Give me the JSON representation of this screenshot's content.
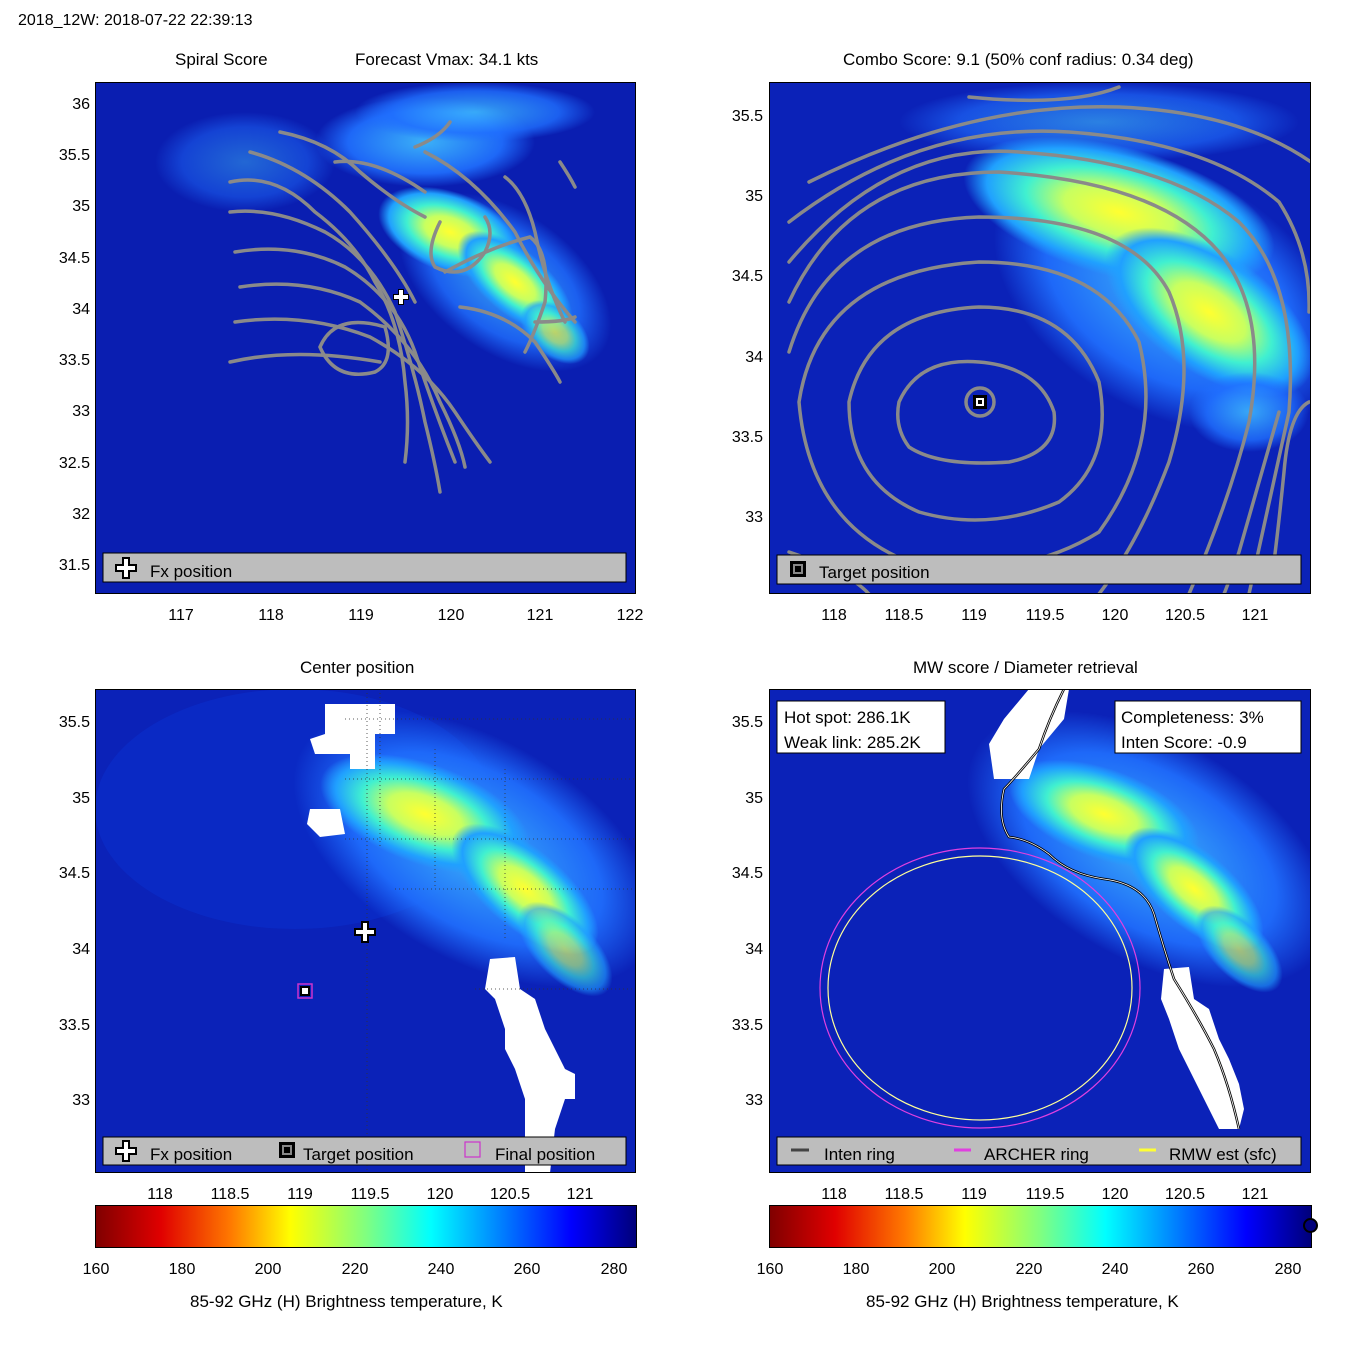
{
  "header": {
    "title": "2018_12W: 2018-07-22 22:39:13"
  },
  "colorbar": {
    "ticks": [
      "160",
      "180",
      "200",
      "220",
      "240",
      "260",
      "280"
    ],
    "label": "85-92 GHz (H) Brightness temperature, K",
    "range": [
      160,
      285
    ]
  },
  "colors": {
    "background": "#0a1fb0",
    "contour": "#8a8a8a",
    "legend_box": "#bdbdbd",
    "final_marker": "#cc33cc",
    "archer_ring": "#e040e0",
    "rmw_ring": "#ffff66"
  },
  "panels": {
    "spiral": {
      "title_left": "Spiral Score",
      "title_right": "Forecast Vmax: 34.1 kts",
      "legend": "Fx position",
      "xticks": [
        "117",
        "118",
        "119",
        "120",
        "121",
        "122"
      ],
      "yticks": [
        "36",
        "35.5",
        "35",
        "34.5",
        "34",
        "33.5",
        "33",
        "32.5",
        "32",
        "31.5"
      ],
      "fx_position": {
        "lon": 119.45,
        "lat": 34.13
      }
    },
    "combo": {
      "title": "Combo Score: 9.1  (50% conf radius: 0.34 deg)",
      "legend": "Target position",
      "xticks": [
        "118",
        "118.5",
        "119",
        "119.5",
        "120",
        "120.5",
        "121"
      ],
      "yticks": [
        "35.5",
        "35",
        "34.5",
        "34",
        "33.5",
        "33"
      ],
      "target_position": {
        "lon": 119.03,
        "lat": 33.73
      }
    },
    "center": {
      "title": "Center position",
      "legend": [
        "Fx position",
        "Target position",
        "Final position"
      ],
      "xticks": [
        "118",
        "118.5",
        "119",
        "119.5",
        "120",
        "120.5",
        "121"
      ],
      "yticks": [
        "35.5",
        "35",
        "34.5",
        "34",
        "33.5",
        "33"
      ],
      "fx_position": {
        "lon": 119.45,
        "lat": 34.13
      },
      "target_position": {
        "lon": 119.03,
        "lat": 33.73
      }
    },
    "mw": {
      "title": "MW score / Diameter retrieval",
      "hot_spot": "Hot spot: 286.1K",
      "weak_link": "Weak link: 285.2K",
      "completeness": "Completeness: 3%",
      "inten_score": "Inten Score: -0.9",
      "legend": [
        "Inten ring",
        "ARCHER ring",
        "RMW est (sfc)"
      ],
      "xticks": [
        "118",
        "118.5",
        "119",
        "119.5",
        "120",
        "120.5",
        "121"
      ],
      "yticks": [
        "35.5",
        "35",
        "34.5",
        "34",
        "33.5",
        "33"
      ]
    }
  },
  "chart_data": [
    {
      "type": "heatmap",
      "title": "Spiral Score",
      "subtitle": "Forecast Vmax: 34.1 kts",
      "xlim": [
        116.05,
        122.05
      ],
      "ylim": [
        31.25,
        36.25
      ],
      "xticks": [
        117,
        118,
        119,
        120,
        121,
        122
      ],
      "yticks": [
        31.5,
        32,
        32.5,
        33,
        33.5,
        34,
        34.5,
        35,
        35.5,
        36
      ],
      "markers": [
        {
          "name": "Fx position",
          "lon": 119.45,
          "lat": 34.13
        }
      ],
      "legend": "bottom"
    },
    {
      "type": "heatmap",
      "title": "Combo Score: 9.1  (50% conf radius: 0.34 deg)",
      "xlim": [
        117.6,
        121.45
      ],
      "ylim": [
        32.5,
        35.75
      ],
      "xticks": [
        118,
        118.5,
        119,
        119.5,
        120,
        120.5,
        121
      ],
      "yticks": [
        33,
        33.5,
        34,
        34.5,
        35,
        35.5
      ],
      "markers": [
        {
          "name": "Target position",
          "lon": 119.03,
          "lat": 33.73
        }
      ],
      "legend": "bottom"
    },
    {
      "type": "heatmap",
      "title": "Center position",
      "xlim": [
        117.6,
        121.45
      ],
      "ylim": [
        32.5,
        35.75
      ],
      "xticks": [
        118,
        118.5,
        119,
        119.5,
        120,
        120.5,
        121
      ],
      "yticks": [
        33,
        33.5,
        34,
        34.5,
        35,
        35.5
      ],
      "markers": [
        {
          "name": "Fx position",
          "lon": 119.45,
          "lat": 34.13
        },
        {
          "name": "Target position",
          "lon": 119.03,
          "lat": 33.73
        },
        {
          "name": "Final position",
          "lon": 119.03,
          "lat": 33.73
        }
      ],
      "legend": "bottom",
      "colorbar": {
        "min": 160,
        "max": 285,
        "label": "85-92 GHz (H) Brightness temperature, K"
      }
    },
    {
      "type": "heatmap",
      "title": "MW score / Diameter retrieval",
      "xlim": [
        117.6,
        121.45
      ],
      "ylim": [
        32.5,
        35.75
      ],
      "xticks": [
        118,
        118.5,
        119,
        119.5,
        120,
        120.5,
        121
      ],
      "yticks": [
        33,
        33.5,
        34,
        34.5,
        35,
        35.5
      ],
      "annotations": [
        "Hot spot: 286.1K",
        "Weak link: 285.2K",
        "Completeness: 3%",
        "Inten Score: -0.9"
      ],
      "rings": [
        {
          "name": "ARCHER ring",
          "center": {
            "lon": 119.03,
            "lat": 33.73
          }
        },
        {
          "name": "RMW est (sfc)",
          "center": {
            "lon": 119.03,
            "lat": 33.73
          }
        }
      ],
      "legend": "bottom",
      "colorbar": {
        "min": 160,
        "max": 285,
        "label": "85-92 GHz (H) Brightness temperature, K"
      }
    }
  ]
}
